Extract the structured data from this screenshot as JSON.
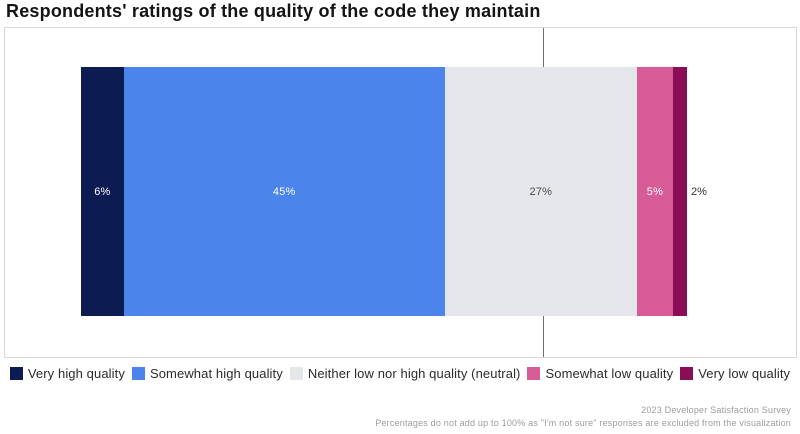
{
  "title": "Respondents' ratings of the quality of the code they maintain",
  "chart_data": {
    "type": "bar",
    "variant": "horizontal-diverging-stacked",
    "title": "Respondents' ratings of the quality of the code they maintain",
    "unit": "%",
    "categories": [
      "Very high quality",
      "Somewhat high quality",
      "Neither low nor high quality (neutral)",
      "Somewhat low quality",
      "Very low quality"
    ],
    "values": [
      6,
      45,
      27,
      5,
      2
    ],
    "segments": [
      {
        "label": "Very high quality",
        "value": 6,
        "display": "6%",
        "color": "#0c1c52",
        "text_color": "#ffffff",
        "label_position": "inside"
      },
      {
        "label": "Somewhat high quality",
        "value": 45,
        "display": "45%",
        "color": "#4b84ea",
        "text_color": "#ffffff",
        "label_position": "inside"
      },
      {
        "label": "Neither low nor high quality (neutral)",
        "value": 27,
        "display": "27%",
        "color": "#e5e6ea",
        "text_color": "#4a4a4a",
        "label_position": "inside"
      },
      {
        "label": "Somewhat low quality",
        "value": 5,
        "display": "5%",
        "color": "#d65b97",
        "text_color": "#ffffff",
        "label_position": "inside"
      },
      {
        "label": "Very low quality",
        "value": 2,
        "display": "2%",
        "color": "#8a0d55",
        "text_color": "#333333",
        "label_position": "outside"
      }
    ],
    "zero_line": {
      "present": true,
      "note": "vertical reference line centered on the neutral segment"
    },
    "legend_position": "bottom",
    "grid": false
  },
  "legend": {
    "items": [
      {
        "label": "Very high quality",
        "color": "#0c1c52"
      },
      {
        "label": "Somewhat high quality",
        "color": "#4b84ea"
      },
      {
        "label": "Neither low nor high quality (neutral)",
        "color": "#e5e6ea"
      },
      {
        "label": "Somewhat low quality",
        "color": "#d65b97"
      },
      {
        "label": "Very low quality",
        "color": "#8a0d55"
      }
    ]
  },
  "footer": {
    "source": "2023 Developer Satisfaction Survey",
    "note": "Percentages do not add up to 100% as \"I'm not sure\" responses are excluded from the visualization"
  }
}
